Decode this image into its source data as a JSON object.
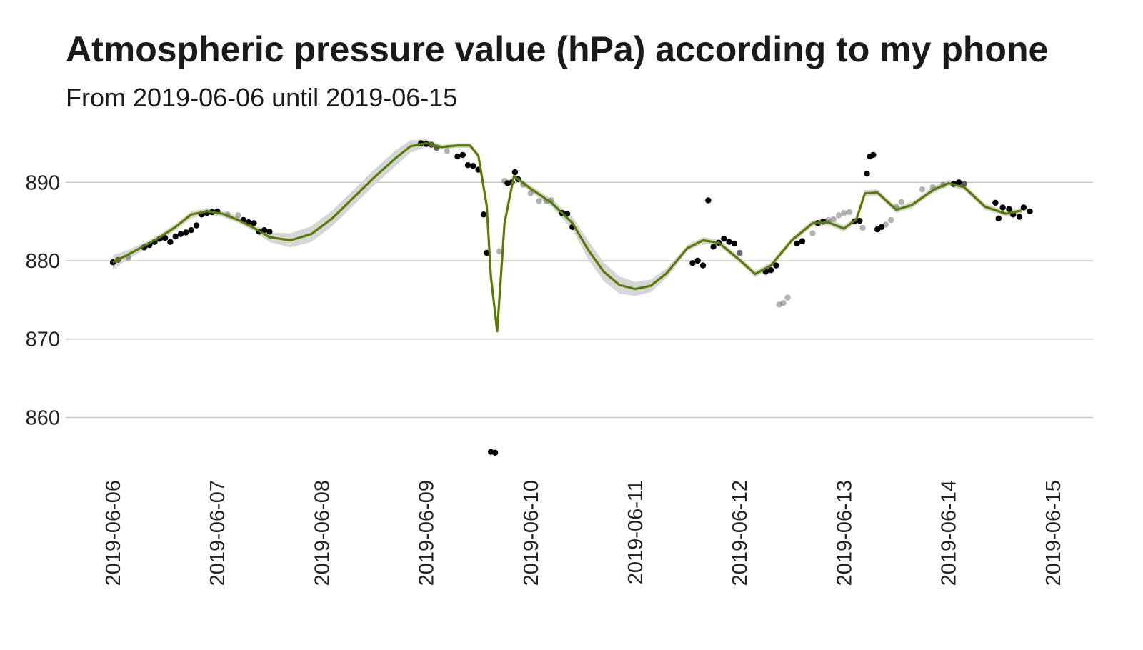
{
  "chart_data": {
    "type": "line",
    "title": "Atmospheric pressure value (hPa) according to my phone",
    "subtitle": "From 2019-06-06 until 2019-06-15",
    "xlabel": "",
    "ylabel": "",
    "x_ticks": [
      "2019-06-06",
      "2019-06-07",
      "2019-06-08",
      "2019-06-09",
      "2019-06-10",
      "2019-06-11",
      "2019-06-12",
      "2019-06-13",
      "2019-06-14",
      "2019-06-15"
    ],
    "y_ticks": [
      860,
      870,
      880,
      890
    ],
    "ylim": [
      854,
      896
    ],
    "xlim_days": [
      0,
      9
    ],
    "grid": "horizontal",
    "legend": "none",
    "colors": {
      "smooth_line": "#5a7a00",
      "confidence_band": "#d6d6d6",
      "points": "#000000",
      "gridline": "#c8c8c8"
    },
    "smooth": [
      {
        "t": 0.0,
        "y": 879.8,
        "lo": 878.9,
        "hi": 880.7
      },
      {
        "t": 0.15,
        "y": 880.8,
        "lo": 880.2,
        "hi": 881.4
      },
      {
        "t": 0.3,
        "y": 881.9,
        "lo": 881.4,
        "hi": 882.3
      },
      {
        "t": 0.45,
        "y": 883.0,
        "lo": 882.6,
        "hi": 883.4
      },
      {
        "t": 0.6,
        "y": 884.3,
        "lo": 883.9,
        "hi": 884.7
      },
      {
        "t": 0.75,
        "y": 885.9,
        "lo": 885.4,
        "hi": 886.3
      },
      {
        "t": 0.9,
        "y": 886.3,
        "lo": 885.9,
        "hi": 886.7
      },
      {
        "t": 1.05,
        "y": 886.0,
        "lo": 885.6,
        "hi": 886.4
      },
      {
        "t": 1.2,
        "y": 885.2,
        "lo": 884.8,
        "hi": 885.6
      },
      {
        "t": 1.35,
        "y": 884.2,
        "lo": 883.8,
        "hi": 884.6
      },
      {
        "t": 1.5,
        "y": 883.0,
        "lo": 882.4,
        "hi": 883.6
      },
      {
        "t": 1.7,
        "y": 882.6,
        "lo": 881.7,
        "hi": 883.5
      },
      {
        "t": 1.9,
        "y": 883.4,
        "lo": 882.4,
        "hi": 884.4
      },
      {
        "t": 2.1,
        "y": 885.4,
        "lo": 884.4,
        "hi": 886.4
      },
      {
        "t": 2.3,
        "y": 888.0,
        "lo": 887.0,
        "hi": 889.0
      },
      {
        "t": 2.5,
        "y": 890.6,
        "lo": 889.6,
        "hi": 891.6
      },
      {
        "t": 2.7,
        "y": 893.0,
        "lo": 892.0,
        "hi": 894.0
      },
      {
        "t": 2.85,
        "y": 894.6,
        "lo": 893.8,
        "hi": 895.4
      },
      {
        "t": 3.0,
        "y": 895.0,
        "lo": 894.5,
        "hi": 895.5
      },
      {
        "t": 3.15,
        "y": 894.5,
        "lo": 894.2,
        "hi": 894.8
      },
      {
        "t": 3.3,
        "y": 894.7,
        "lo": 894.4,
        "hi": 895.0
      },
      {
        "t": 3.42,
        "y": 894.7,
        "lo": 894.4,
        "hi": 895.0
      },
      {
        "t": 3.5,
        "y": 893.4,
        "lo": 893.1,
        "hi": 893.7
      },
      {
        "t": 3.58,
        "y": 887.0,
        "lo": 886.7,
        "hi": 887.3
      },
      {
        "t": 3.62,
        "y": 878.0,
        "lo": 877.7,
        "hi": 878.3
      },
      {
        "t": 3.68,
        "y": 871.0,
        "lo": 870.7,
        "hi": 871.3
      },
      {
        "t": 3.75,
        "y": 884.8,
        "lo": 884.5,
        "hi": 885.1
      },
      {
        "t": 3.84,
        "y": 890.8,
        "lo": 890.5,
        "hi": 891.1
      },
      {
        "t": 4.0,
        "y": 889.2,
        "lo": 888.8,
        "hi": 889.6
      },
      {
        "t": 4.2,
        "y": 887.4,
        "lo": 886.9,
        "hi": 887.9
      },
      {
        "t": 4.4,
        "y": 884.8,
        "lo": 884.0,
        "hi": 885.6
      },
      {
        "t": 4.55,
        "y": 881.4,
        "lo": 880.2,
        "hi": 882.6
      },
      {
        "t": 4.7,
        "y": 878.6,
        "lo": 877.4,
        "hi": 879.8
      },
      {
        "t": 4.85,
        "y": 876.9,
        "lo": 875.8,
        "hi": 878.0
      },
      {
        "t": 5.0,
        "y": 876.4,
        "lo": 875.5,
        "hi": 877.3
      },
      {
        "t": 5.15,
        "y": 876.8,
        "lo": 876.0,
        "hi": 877.6
      },
      {
        "t": 5.3,
        "y": 878.4,
        "lo": 877.8,
        "hi": 879.0
      },
      {
        "t": 5.5,
        "y": 881.6,
        "lo": 881.2,
        "hi": 882.0
      },
      {
        "t": 5.65,
        "y": 882.6,
        "lo": 882.2,
        "hi": 883.0
      },
      {
        "t": 5.8,
        "y": 882.3,
        "lo": 881.9,
        "hi": 882.7
      },
      {
        "t": 6.0,
        "y": 880.1,
        "lo": 879.7,
        "hi": 880.5
      },
      {
        "t": 6.15,
        "y": 878.3,
        "lo": 877.9,
        "hi": 878.7
      },
      {
        "t": 6.3,
        "y": 879.4,
        "lo": 879.0,
        "hi": 879.8
      },
      {
        "t": 6.5,
        "y": 882.6,
        "lo": 882.2,
        "hi": 883.0
      },
      {
        "t": 6.7,
        "y": 884.8,
        "lo": 884.4,
        "hi": 885.2
      },
      {
        "t": 6.85,
        "y": 884.9,
        "lo": 884.5,
        "hi": 885.3
      },
      {
        "t": 7.0,
        "y": 884.1,
        "lo": 883.7,
        "hi": 884.5
      },
      {
        "t": 7.12,
        "y": 885.3,
        "lo": 884.9,
        "hi": 885.7
      },
      {
        "t": 7.2,
        "y": 888.6,
        "lo": 888.2,
        "hi": 889.0
      },
      {
        "t": 7.32,
        "y": 888.7,
        "lo": 888.3,
        "hi": 889.1
      },
      {
        "t": 7.5,
        "y": 886.5,
        "lo": 886.1,
        "hi": 886.9
      },
      {
        "t": 7.65,
        "y": 887.1,
        "lo": 886.7,
        "hi": 887.5
      },
      {
        "t": 7.85,
        "y": 889.0,
        "lo": 888.6,
        "hi": 889.4
      },
      {
        "t": 8.0,
        "y": 889.9,
        "lo": 889.5,
        "hi": 890.3
      },
      {
        "t": 8.15,
        "y": 889.4,
        "lo": 889.0,
        "hi": 889.8
      },
      {
        "t": 8.35,
        "y": 886.9,
        "lo": 886.5,
        "hi": 887.3
      },
      {
        "t": 8.55,
        "y": 886.0,
        "lo": 885.6,
        "hi": 886.4
      },
      {
        "t": 8.7,
        "y": 886.4,
        "lo": 886.0,
        "hi": 886.8
      }
    ],
    "points": [
      {
        "t": 0.0,
        "y": 879.8,
        "a": 1
      },
      {
        "t": 0.05,
        "y": 880.1,
        "a": 0.6
      },
      {
        "t": 0.15,
        "y": 880.4,
        "a": 0.3
      },
      {
        "t": 0.3,
        "y": 881.7,
        "a": 1
      },
      {
        "t": 0.35,
        "y": 882.0,
        "a": 1
      },
      {
        "t": 0.4,
        "y": 882.4,
        "a": 1
      },
      {
        "t": 0.45,
        "y": 882.8,
        "a": 1
      },
      {
        "t": 0.5,
        "y": 882.9,
        "a": 1
      },
      {
        "t": 0.55,
        "y": 882.4,
        "a": 1
      },
      {
        "t": 0.6,
        "y": 883.1,
        "a": 1
      },
      {
        "t": 0.65,
        "y": 883.4,
        "a": 1
      },
      {
        "t": 0.7,
        "y": 883.6,
        "a": 1
      },
      {
        "t": 0.75,
        "y": 883.9,
        "a": 1
      },
      {
        "t": 0.8,
        "y": 884.5,
        "a": 1
      },
      {
        "t": 0.85,
        "y": 885.9,
        "a": 1
      },
      {
        "t": 0.9,
        "y": 886.1,
        "a": 1
      },
      {
        "t": 0.95,
        "y": 886.2,
        "a": 1
      },
      {
        "t": 1.0,
        "y": 886.3,
        "a": 1
      },
      {
        "t": 1.1,
        "y": 885.9,
        "a": 0.3
      },
      {
        "t": 1.2,
        "y": 885.8,
        "a": 0.3
      },
      {
        "t": 1.25,
        "y": 885.2,
        "a": 1
      },
      {
        "t": 1.3,
        "y": 884.9,
        "a": 1
      },
      {
        "t": 1.35,
        "y": 884.8,
        "a": 1
      },
      {
        "t": 1.4,
        "y": 883.7,
        "a": 1
      },
      {
        "t": 1.45,
        "y": 883.9,
        "a": 1
      },
      {
        "t": 1.5,
        "y": 883.7,
        "a": 1
      },
      {
        "t": 2.95,
        "y": 895.0,
        "a": 1
      },
      {
        "t": 3.0,
        "y": 894.9,
        "a": 1
      },
      {
        "t": 3.05,
        "y": 894.8,
        "a": 0.6
      },
      {
        "t": 3.1,
        "y": 894.4,
        "a": 0.6
      },
      {
        "t": 3.2,
        "y": 894.0,
        "a": 0.3
      },
      {
        "t": 3.3,
        "y": 893.3,
        "a": 1
      },
      {
        "t": 3.35,
        "y": 893.5,
        "a": 1
      },
      {
        "t": 3.4,
        "y": 892.2,
        "a": 1
      },
      {
        "t": 3.45,
        "y": 892.1,
        "a": 1
      },
      {
        "t": 3.5,
        "y": 891.6,
        "a": 1
      },
      {
        "t": 3.55,
        "y": 885.9,
        "a": 1
      },
      {
        "t": 3.58,
        "y": 881.0,
        "a": 1
      },
      {
        "t": 3.62,
        "y": 855.6,
        "a": 1
      },
      {
        "t": 3.66,
        "y": 855.5,
        "a": 1
      },
      {
        "t": 3.7,
        "y": 881.2,
        "a": 0.3
      },
      {
        "t": 3.75,
        "y": 890.2,
        "a": 0.3
      },
      {
        "t": 3.78,
        "y": 889.9,
        "a": 1
      },
      {
        "t": 3.82,
        "y": 890.0,
        "a": 1
      },
      {
        "t": 3.85,
        "y": 891.3,
        "a": 1
      },
      {
        "t": 3.88,
        "y": 890.4,
        "a": 1
      },
      {
        "t": 3.93,
        "y": 889.7,
        "a": 0.3
      },
      {
        "t": 4.0,
        "y": 888.6,
        "a": 0.3
      },
      {
        "t": 4.08,
        "y": 887.6,
        "a": 0.3
      },
      {
        "t": 4.15,
        "y": 887.6,
        "a": 0.3
      },
      {
        "t": 4.2,
        "y": 887.7,
        "a": 0.3
      },
      {
        "t": 4.3,
        "y": 886.1,
        "a": 1
      },
      {
        "t": 4.35,
        "y": 886.0,
        "a": 1
      },
      {
        "t": 4.4,
        "y": 884.3,
        "a": 1
      },
      {
        "t": 5.55,
        "y": 879.7,
        "a": 1
      },
      {
        "t": 5.6,
        "y": 880.0,
        "a": 1
      },
      {
        "t": 5.65,
        "y": 879.4,
        "a": 1
      },
      {
        "t": 5.7,
        "y": 887.7,
        "a": 1
      },
      {
        "t": 5.75,
        "y": 881.8,
        "a": 1
      },
      {
        "t": 5.8,
        "y": 882.3,
        "a": 1
      },
      {
        "t": 5.85,
        "y": 882.8,
        "a": 1
      },
      {
        "t": 5.9,
        "y": 882.4,
        "a": 1
      },
      {
        "t": 5.95,
        "y": 882.2,
        "a": 1
      },
      {
        "t": 6.0,
        "y": 881.0,
        "a": 0.6
      },
      {
        "t": 6.25,
        "y": 878.6,
        "a": 1
      },
      {
        "t": 6.3,
        "y": 878.8,
        "a": 1
      },
      {
        "t": 6.35,
        "y": 879.4,
        "a": 1
      },
      {
        "t": 6.38,
        "y": 874.4,
        "a": 0.3
      },
      {
        "t": 6.42,
        "y": 874.6,
        "a": 0.3
      },
      {
        "t": 6.46,
        "y": 875.3,
        "a": 0.3
      },
      {
        "t": 6.55,
        "y": 882.2,
        "a": 1
      },
      {
        "t": 6.6,
        "y": 882.5,
        "a": 1
      },
      {
        "t": 6.7,
        "y": 883.5,
        "a": 0.3
      },
      {
        "t": 6.75,
        "y": 884.8,
        "a": 1
      },
      {
        "t": 6.8,
        "y": 885.0,
        "a": 1
      },
      {
        "t": 6.85,
        "y": 885.2,
        "a": 0.3
      },
      {
        "t": 6.9,
        "y": 885.3,
        "a": 0.3
      },
      {
        "t": 6.95,
        "y": 885.8,
        "a": 0.3
      },
      {
        "t": 7.0,
        "y": 886.1,
        "a": 0.3
      },
      {
        "t": 7.05,
        "y": 886.2,
        "a": 0.3
      },
      {
        "t": 7.1,
        "y": 885.0,
        "a": 1
      },
      {
        "t": 7.15,
        "y": 885.1,
        "a": 1
      },
      {
        "t": 7.18,
        "y": 884.2,
        "a": 0.3
      },
      {
        "t": 7.22,
        "y": 891.1,
        "a": 1
      },
      {
        "t": 7.25,
        "y": 893.3,
        "a": 1
      },
      {
        "t": 7.28,
        "y": 893.5,
        "a": 1
      },
      {
        "t": 7.32,
        "y": 884.0,
        "a": 1
      },
      {
        "t": 7.36,
        "y": 884.3,
        "a": 1
      },
      {
        "t": 7.4,
        "y": 884.6,
        "a": 0.3
      },
      {
        "t": 7.45,
        "y": 885.2,
        "a": 0.3
      },
      {
        "t": 7.5,
        "y": 886.9,
        "a": 0.3
      },
      {
        "t": 7.55,
        "y": 887.5,
        "a": 0.3
      },
      {
        "t": 7.75,
        "y": 889.1,
        "a": 0.3
      },
      {
        "t": 7.85,
        "y": 889.4,
        "a": 0.3
      },
      {
        "t": 7.95,
        "y": 889.7,
        "a": 0.3
      },
      {
        "t": 8.05,
        "y": 889.8,
        "a": 1
      },
      {
        "t": 8.1,
        "y": 890.0,
        "a": 1
      },
      {
        "t": 8.15,
        "y": 889.8,
        "a": 0.6
      },
      {
        "t": 8.45,
        "y": 887.4,
        "a": 1
      },
      {
        "t": 8.48,
        "y": 885.4,
        "a": 1
      },
      {
        "t": 8.52,
        "y": 886.8,
        "a": 1
      },
      {
        "t": 8.58,
        "y": 886.6,
        "a": 1
      },
      {
        "t": 8.62,
        "y": 885.9,
        "a": 1
      },
      {
        "t": 8.68,
        "y": 885.6,
        "a": 1
      },
      {
        "t": 8.72,
        "y": 886.8,
        "a": 1
      },
      {
        "t": 8.78,
        "y": 886.3,
        "a": 1
      }
    ]
  }
}
